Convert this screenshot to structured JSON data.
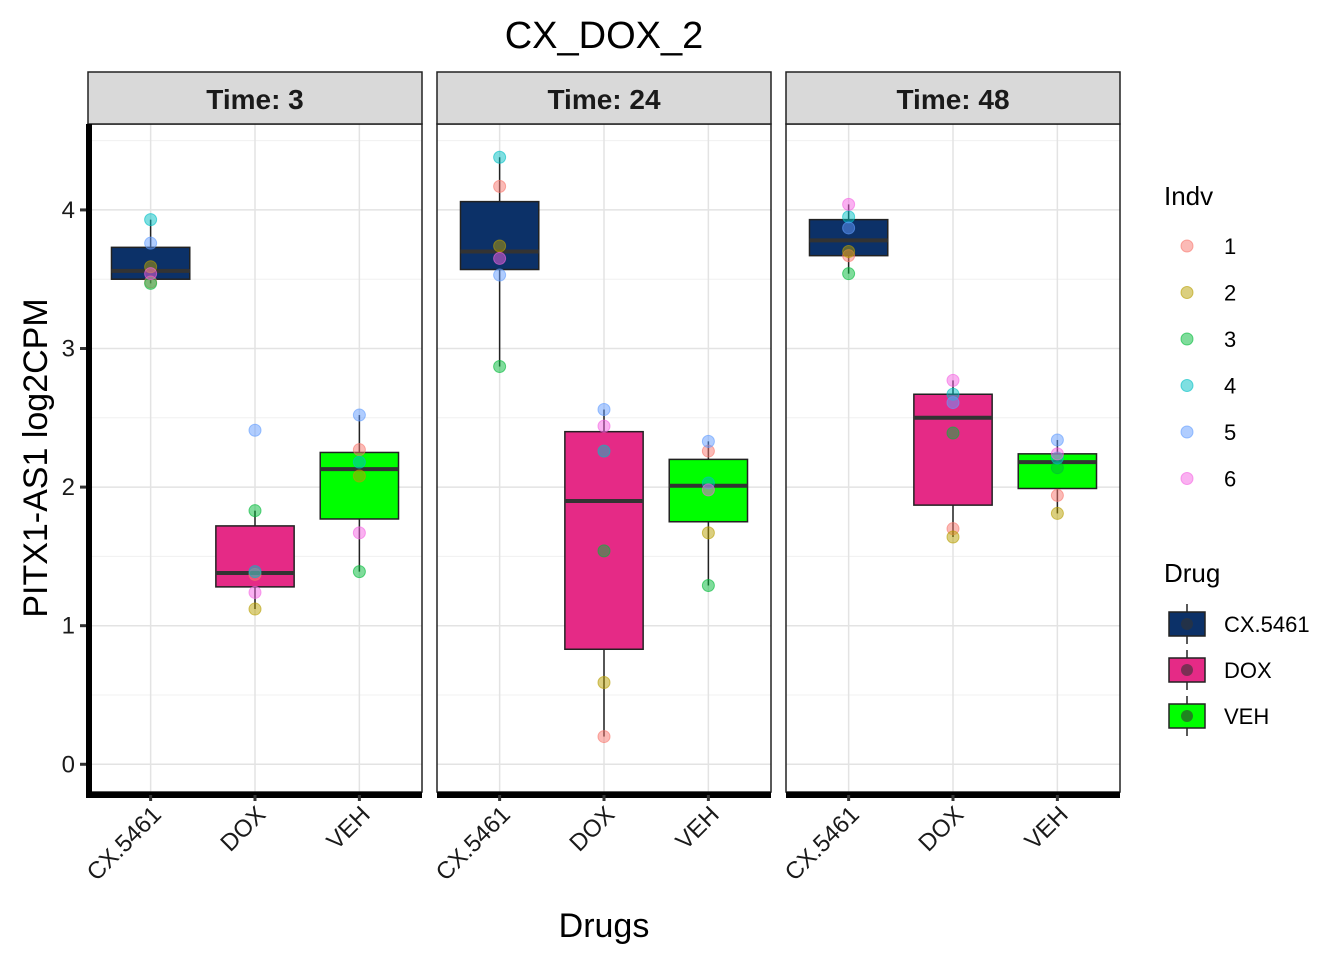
{
  "chart_data": {
    "type": "box",
    "title": "CX_DOX_2",
    "xlabel": "Drugs",
    "ylabel": "PITX1-AS1  log2CPM",
    "ylim": [
      -0.2,
      4.62
    ],
    "yticks": [
      0,
      1,
      2,
      3,
      4
    ],
    "categories": [
      "CX.5461",
      "DOX",
      "VEH"
    ],
    "grid": true,
    "facet_label_prefix": "Time: ",
    "legend_position": "right",
    "legends": {
      "indv": {
        "title": "Indv",
        "items": [
          {
            "label": "1",
            "color": "#F8766D"
          },
          {
            "label": "2",
            "color": "#B79F00"
          },
          {
            "label": "3",
            "color": "#00BA38"
          },
          {
            "label": "4",
            "color": "#00BFC4"
          },
          {
            "label": "5",
            "color": "#619CFF"
          },
          {
            "label": "6",
            "color": "#F564E3"
          }
        ]
      },
      "drug": {
        "title": "Drug",
        "items": [
          {
            "label": "CX.5461",
            "color": "#0C3168"
          },
          {
            "label": "DOX",
            "color": "#E52A86"
          },
          {
            "label": "VEH",
            "color": "#00FF00"
          }
        ]
      }
    },
    "panels": [
      {
        "time": "3",
        "boxes": [
          {
            "drug": "CX.5461",
            "q1": 3.5,
            "median": 3.56,
            "q3": 3.73,
            "lower": 3.47,
            "upper": 3.93,
            "points": [
              {
                "indv": "1",
                "y": 3.48
              },
              {
                "indv": "2",
                "y": 3.59
              },
              {
                "indv": "3",
                "y": 3.47
              },
              {
                "indv": "4",
                "y": 3.93
              },
              {
                "indv": "5",
                "y": 3.76
              },
              {
                "indv": "6",
                "y": 3.54
              }
            ]
          },
          {
            "drug": "DOX",
            "q1": 1.28,
            "median": 1.38,
            "q3": 1.72,
            "lower": 1.12,
            "upper": 1.83,
            "points": [
              {
                "indv": "1",
                "y": 1.37
              },
              {
                "indv": "2",
                "y": 1.12
              },
              {
                "indv": "3",
                "y": 1.83
              },
              {
                "indv": "4",
                "y": 1.39
              },
              {
                "indv": "5",
                "y": 2.41
              },
              {
                "indv": "6",
                "y": 1.24
              }
            ]
          },
          {
            "drug": "VEH",
            "q1": 1.77,
            "median": 2.13,
            "q3": 2.25,
            "lower": 1.39,
            "upper": 2.52,
            "points": [
              {
                "indv": "1",
                "y": 2.27
              },
              {
                "indv": "2",
                "y": 2.08
              },
              {
                "indv": "3",
                "y": 1.39
              },
              {
                "indv": "4",
                "y": 2.18
              },
              {
                "indv": "5",
                "y": 2.52
              },
              {
                "indv": "6",
                "y": 1.67
              }
            ]
          }
        ]
      },
      {
        "time": "24",
        "boxes": [
          {
            "drug": "CX.5461",
            "q1": 3.57,
            "median": 3.7,
            "q3": 4.06,
            "lower": 2.87,
            "upper": 4.38,
            "points": [
              {
                "indv": "1",
                "y": 4.17
              },
              {
                "indv": "2",
                "y": 3.74
              },
              {
                "indv": "3",
                "y": 2.87
              },
              {
                "indv": "4",
                "y": 4.38
              },
              {
                "indv": "5",
                "y": 3.53
              },
              {
                "indv": "6",
                "y": 3.65
              }
            ]
          },
          {
            "drug": "DOX",
            "q1": 0.83,
            "median": 1.9,
            "q3": 2.4,
            "lower": 0.2,
            "upper": 2.56,
            "points": [
              {
                "indv": "1",
                "y": 0.2
              },
              {
                "indv": "2",
                "y": 0.59
              },
              {
                "indv": "3",
                "y": 1.54
              },
              {
                "indv": "4",
                "y": 2.26
              },
              {
                "indv": "5",
                "y": 2.56
              },
              {
                "indv": "6",
                "y": 2.44
              }
            ]
          },
          {
            "drug": "VEH",
            "q1": 1.75,
            "median": 2.01,
            "q3": 2.2,
            "lower": 1.29,
            "upper": 2.33,
            "points": [
              {
                "indv": "1",
                "y": 2.26
              },
              {
                "indv": "2",
                "y": 1.67
              },
              {
                "indv": "3",
                "y": 1.29
              },
              {
                "indv": "4",
                "y": 2.03
              },
              {
                "indv": "5",
                "y": 2.33
              },
              {
                "indv": "6",
                "y": 1.98
              }
            ]
          }
        ]
      },
      {
        "time": "48",
        "boxes": [
          {
            "drug": "CX.5461",
            "q1": 3.67,
            "median": 3.78,
            "q3": 3.93,
            "lower": 3.54,
            "upper": 4.04,
            "points": [
              {
                "indv": "1",
                "y": 3.67
              },
              {
                "indv": "2",
                "y": 3.7
              },
              {
                "indv": "3",
                "y": 3.54
              },
              {
                "indv": "4",
                "y": 3.95
              },
              {
                "indv": "5",
                "y": 3.87
              },
              {
                "indv": "6",
                "y": 4.04
              }
            ]
          },
          {
            "drug": "DOX",
            "q1": 1.87,
            "median": 2.5,
            "q3": 2.67,
            "lower": 1.64,
            "upper": 2.77,
            "points": [
              {
                "indv": "1",
                "y": 1.7
              },
              {
                "indv": "2",
                "y": 1.64
              },
              {
                "indv": "3",
                "y": 2.39
              },
              {
                "indv": "4",
                "y": 2.67
              },
              {
                "indv": "5",
                "y": 2.61
              },
              {
                "indv": "6",
                "y": 2.77
              }
            ]
          },
          {
            "drug": "VEH",
            "q1": 1.99,
            "median": 2.18,
            "q3": 2.24,
            "lower": 1.81,
            "upper": 2.34,
            "points": [
              {
                "indv": "1",
                "y": 1.94
              },
              {
                "indv": "2",
                "y": 1.81
              },
              {
                "indv": "3",
                "y": 2.14
              },
              {
                "indv": "4",
                "y": 2.21
              },
              {
                "indv": "5",
                "y": 2.34
              },
              {
                "indv": "6",
                "y": 2.24
              }
            ]
          }
        ]
      }
    ]
  }
}
